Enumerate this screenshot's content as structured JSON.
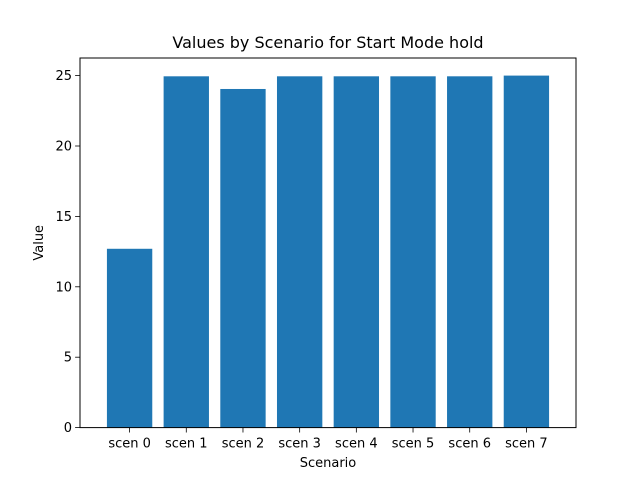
{
  "chart_data": {
    "type": "bar",
    "title": "Values by Scenario for Start Mode hold",
    "xlabel": "Scenario",
    "ylabel": "Value",
    "categories": [
      "scen 0",
      "scen 1",
      "scen 2",
      "scen 3",
      "scen 4",
      "scen 5",
      "scen 6",
      "scen 7"
    ],
    "values": [
      12.7,
      24.95,
      24.05,
      24.95,
      24.95,
      24.95,
      24.95,
      25.0
    ],
    "ylim": [
      0,
      26.25
    ],
    "yticks": [
      0,
      5,
      10,
      15,
      20,
      25
    ],
    "bar_color": "#1f77b4",
    "grid": false,
    "legend": "none"
  }
}
